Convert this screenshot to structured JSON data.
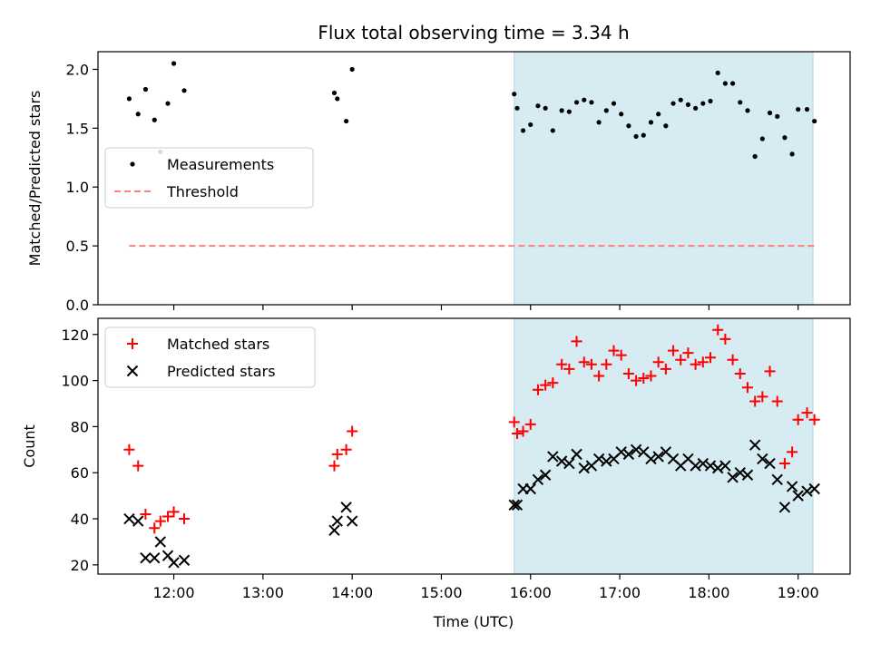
{
  "figure": {
    "title": "Flux total observing time = 3.34 h",
    "xlabel": "Time (UTC)"
  },
  "chart_data": [
    {
      "type": "scatter",
      "panel": "top",
      "ylabel": "Matched/Predicted stars",
      "ylim": [
        0,
        2.15
      ],
      "yticks": [
        0.0,
        0.5,
        1.0,
        1.5,
        2.0
      ],
      "ytick_labels": [
        "0.0",
        "0.5",
        "1.0",
        "1.5",
        "2.0"
      ],
      "xlim": [
        "11:09",
        "19:35"
      ],
      "xticks": [
        "12:00",
        "13:00",
        "14:00",
        "15:00",
        "16:00",
        "17:00",
        "18:00",
        "19:00"
      ],
      "shaded_region": {
        "x": [
          "15:49",
          "19:10"
        ],
        "color": "#add8e6"
      },
      "legend": "center-left",
      "series": [
        {
          "name": "Measurements",
          "marker": "dot",
          "color": "#000000",
          "points": [
            [
              "11:30",
              1.75
            ],
            [
              "11:36",
              1.62
            ],
            [
              "11:41",
              1.83
            ],
            [
              "11:47",
              1.57
            ],
            [
              "11:51",
              1.3
            ],
            [
              "11:56",
              1.71
            ],
            [
              "12:00",
              2.05
            ],
            [
              "12:07",
              1.82
            ],
            [
              "13:48",
              1.8
            ],
            [
              "13:50",
              1.75
            ],
            [
              "13:56",
              1.56
            ],
            [
              "14:00",
              2.0
            ],
            [
              "15:49",
              1.79
            ],
            [
              "15:51",
              1.67
            ],
            [
              "15:55",
              1.48
            ],
            [
              "16:00",
              1.53
            ],
            [
              "16:05",
              1.69
            ],
            [
              "16:10",
              1.67
            ],
            [
              "16:15",
              1.48
            ],
            [
              "16:21",
              1.65
            ],
            [
              "16:26",
              1.64
            ],
            [
              "16:31",
              1.72
            ],
            [
              "16:36",
              1.74
            ],
            [
              "16:41",
              1.72
            ],
            [
              "16:46",
              1.55
            ],
            [
              "16:51",
              1.65
            ],
            [
              "16:56",
              1.71
            ],
            [
              "17:01",
              1.62
            ],
            [
              "17:06",
              1.52
            ],
            [
              "17:11",
              1.43
            ],
            [
              "17:16",
              1.44
            ],
            [
              "17:21",
              1.55
            ],
            [
              "17:26",
              1.62
            ],
            [
              "17:31",
              1.52
            ],
            [
              "17:36",
              1.71
            ],
            [
              "17:41",
              1.74
            ],
            [
              "17:46",
              1.7
            ],
            [
              "17:51",
              1.67
            ],
            [
              "17:56",
              1.71
            ],
            [
              "18:01",
              1.73
            ],
            [
              "18:06",
              1.97
            ],
            [
              "18:11",
              1.88
            ],
            [
              "18:16",
              1.88
            ],
            [
              "18:21",
              1.72
            ],
            [
              "18:26",
              1.65
            ],
            [
              "18:31",
              1.26
            ],
            [
              "18:36",
              1.41
            ],
            [
              "18:41",
              1.63
            ],
            [
              "18:46",
              1.6
            ],
            [
              "18:51",
              1.42
            ],
            [
              "18:56",
              1.28
            ],
            [
              "19:00",
              1.66
            ],
            [
              "19:06",
              1.66
            ],
            [
              "19:11",
              1.56
            ]
          ]
        },
        {
          "name": "Threshold",
          "marker": "dashed-line",
          "color": "#ff8080",
          "points": [
            [
              "11:30",
              0.5
            ],
            [
              "19:11",
              0.5
            ]
          ]
        }
      ]
    },
    {
      "type": "scatter",
      "panel": "bottom",
      "ylabel": "Count",
      "ylim": [
        16,
        127
      ],
      "yticks": [
        20,
        40,
        60,
        80,
        100,
        120
      ],
      "ytick_labels": [
        "20",
        "40",
        "60",
        "80",
        "100",
        "120"
      ],
      "xlim": [
        "11:09",
        "19:35"
      ],
      "xticks": [
        "12:00",
        "13:00",
        "14:00",
        "15:00",
        "16:00",
        "17:00",
        "18:00",
        "19:00"
      ],
      "xtick_labels": [
        "12:00",
        "13:00",
        "14:00",
        "15:00",
        "16:00",
        "17:00",
        "18:00",
        "19:00"
      ],
      "shaded_region": {
        "x": [
          "15:49",
          "19:10"
        ],
        "color": "#add8e6"
      },
      "legend": "top-left",
      "series": [
        {
          "name": "Matched stars",
          "marker": "plus",
          "color": "#ff0000",
          "points": [
            [
              "11:30",
              70
            ],
            [
              "11:36",
              63
            ],
            [
              "11:41",
              42
            ],
            [
              "11:47",
              36
            ],
            [
              "11:51",
              39
            ],
            [
              "11:56",
              41
            ],
            [
              "12:00",
              43
            ],
            [
              "12:07",
              40
            ],
            [
              "13:48",
              63
            ],
            [
              "13:50",
              68
            ],
            [
              "13:56",
              70
            ],
            [
              "14:00",
              78
            ],
            [
              "15:49",
              82
            ],
            [
              "15:51",
              77
            ],
            [
              "15:55",
              78
            ],
            [
              "16:00",
              81
            ],
            [
              "16:05",
              96
            ],
            [
              "16:10",
              98
            ],
            [
              "16:15",
              99
            ],
            [
              "16:21",
              107
            ],
            [
              "16:26",
              105
            ],
            [
              "16:31",
              117
            ],
            [
              "16:36",
              108
            ],
            [
              "16:41",
              107
            ],
            [
              "16:46",
              102
            ],
            [
              "16:51",
              107
            ],
            [
              "16:56",
              113
            ],
            [
              "17:01",
              111
            ],
            [
              "17:06",
              103
            ],
            [
              "17:11",
              100
            ],
            [
              "17:16",
              101
            ],
            [
              "17:21",
              102
            ],
            [
              "17:26",
              108
            ],
            [
              "17:31",
              105
            ],
            [
              "17:36",
              113
            ],
            [
              "17:41",
              109
            ],
            [
              "17:46",
              112
            ],
            [
              "17:51",
              107
            ],
            [
              "17:56",
              108
            ],
            [
              "18:01",
              110
            ],
            [
              "18:06",
              122
            ],
            [
              "18:11",
              118
            ],
            [
              "18:16",
              109
            ],
            [
              "18:21",
              103
            ],
            [
              "18:26",
              97
            ],
            [
              "18:31",
              91
            ],
            [
              "18:36",
              93
            ],
            [
              "18:41",
              104
            ],
            [
              "18:46",
              91
            ],
            [
              "18:51",
              64
            ],
            [
              "18:56",
              69
            ],
            [
              "19:00",
              83
            ],
            [
              "19:06",
              86
            ],
            [
              "19:11",
              83
            ]
          ]
        },
        {
          "name": "Predicted stars",
          "marker": "x",
          "color": "#000000",
          "points": [
            [
              "11:30",
              40
            ],
            [
              "11:36",
              39
            ],
            [
              "11:41",
              23
            ],
            [
              "11:47",
              23
            ],
            [
              "11:51",
              30
            ],
            [
              "11:56",
              24
            ],
            [
              "12:00",
              21
            ],
            [
              "12:07",
              22
            ],
            [
              "13:48",
              35
            ],
            [
              "13:50",
              39
            ],
            [
              "13:56",
              45
            ],
            [
              "14:00",
              39
            ],
            [
              "15:49",
              46
            ],
            [
              "15:51",
              46
            ],
            [
              "15:55",
              53
            ],
            [
              "16:00",
              53
            ],
            [
              "16:05",
              57
            ],
            [
              "16:10",
              59
            ],
            [
              "16:15",
              67
            ],
            [
              "16:21",
              65
            ],
            [
              "16:26",
              64
            ],
            [
              "16:31",
              68
            ],
            [
              "16:36",
              62
            ],
            [
              "16:41",
              63
            ],
            [
              "16:46",
              66
            ],
            [
              "16:51",
              65
            ],
            [
              "16:56",
              66
            ],
            [
              "17:01",
              69
            ],
            [
              "17:06",
              68
            ],
            [
              "17:11",
              70
            ],
            [
              "17:16",
              69
            ],
            [
              "17:21",
              66
            ],
            [
              "17:26",
              67
            ],
            [
              "17:31",
              69
            ],
            [
              "17:36",
              66
            ],
            [
              "17:41",
              63
            ],
            [
              "17:46",
              66
            ],
            [
              "17:51",
              63
            ],
            [
              "17:56",
              64
            ],
            [
              "18:01",
              63
            ],
            [
              "18:06",
              62
            ],
            [
              "18:11",
              63
            ],
            [
              "18:16",
              58
            ],
            [
              "18:21",
              60
            ],
            [
              "18:26",
              59
            ],
            [
              "18:31",
              72
            ],
            [
              "18:36",
              66
            ],
            [
              "18:41",
              64
            ],
            [
              "18:46",
              57
            ],
            [
              "18:51",
              45
            ],
            [
              "18:56",
              54
            ],
            [
              "19:00",
              50
            ],
            [
              "19:06",
              52
            ],
            [
              "19:11",
              53
            ]
          ]
        }
      ]
    }
  ]
}
